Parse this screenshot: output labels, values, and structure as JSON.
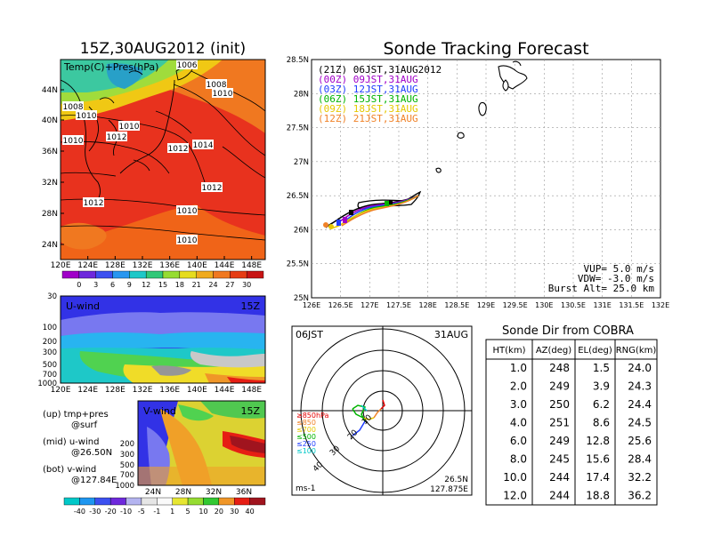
{
  "left": {
    "title": "15Z,30AUG2012 (init)",
    "map_label": "Temp(C)+Pres(hPa)",
    "lat_ticks": [
      "44N",
      "40N",
      "36N",
      "32N",
      "28N",
      "24N"
    ],
    "lon_ticks": [
      "120E",
      "124E",
      "128E",
      "132E",
      "136E",
      "140E",
      "144E",
      "148E"
    ],
    "isobars": [
      "1006",
      "1008",
      "1010",
      "1008",
      "1010",
      "1010",
      "1012",
      "1010",
      "1012",
      "1014",
      "1012",
      "1012",
      "1010",
      "1010"
    ],
    "temp_colorbar": [
      "0",
      "3",
      "6",
      "9",
      "12",
      "15",
      "18",
      "21",
      "24",
      "27",
      "30"
    ],
    "uwind_label": "U-wind",
    "uwind_time": "15Z",
    "uwind_levels": [
      "30",
      "100",
      "200",
      "300",
      "500",
      "700",
      "1000"
    ],
    "uwind_lons": [
      "120E",
      "124E",
      "128E",
      "132E",
      "136E",
      "140E",
      "144E",
      "148E"
    ],
    "vwind_label": "V-wind",
    "vwind_time": "15Z",
    "vwind_levels": [
      "200",
      "300",
      "500",
      "700",
      "1000"
    ],
    "vwind_lats": [
      "24N",
      "28N",
      "32N",
      "36N"
    ],
    "notes": [
      "(up) tmp+pres",
      "@surf",
      "(mid) u-wind",
      "@26.50N",
      "(bot) v-wind",
      "@127.84E"
    ],
    "wind_colorbar": [
      "-40",
      "-30",
      "-20",
      "-10",
      "-5",
      "-1",
      "1",
      "5",
      "10",
      "20",
      "30",
      "40"
    ]
  },
  "forecast": {
    "title": "Sonde Tracking Forecast",
    "lat_ticks": [
      "28.5N",
      "28N",
      "27.5N",
      "27N",
      "26.5N",
      "26N",
      "25.5N",
      "25N"
    ],
    "lon_ticks": [
      "126E",
      "126.5E",
      "127E",
      "127.5E",
      "128E",
      "128.5E",
      "129E",
      "129.5E",
      "130E",
      "130.5E",
      "131E",
      "131.5E",
      "132E"
    ],
    "legend": [
      {
        "text": "(21Z)  06JST,31AUG2012",
        "color": "#000000"
      },
      {
        "text": "(00Z)  09JST,31AUG",
        "color": "#a000c8"
      },
      {
        "text": "(03Z)  12JST,31AUG",
        "color": "#1e3cff"
      },
      {
        "text": "(06Z)  15JST,31AUG",
        "color": "#00b400"
      },
      {
        "text": "(09Z)  18JST,31AUG",
        "color": "#e6c800"
      },
      {
        "text": "(12Z)  21JST,31AUG",
        "color": "#f08228"
      }
    ],
    "params": [
      "VUP=  5.0  m/s",
      "VDW= -3.0  m/s",
      "Burst Alt=  25.0  km"
    ]
  },
  "polar": {
    "left_label": "06JST",
    "right_label": "31AUG",
    "pressure_labels": [
      "≥850hPa",
      "≤850",
      "≤700",
      "≤500",
      "≤250",
      "≤100"
    ],
    "pressure_colors": [
      "#e60000",
      "#f08228",
      "#e6c800",
      "#00b400",
      "#1e3cff",
      "#00c8c8"
    ],
    "speed_labels": [
      "10",
      "20",
      "30",
      "40"
    ],
    "unit": "ms-1",
    "location": [
      "26.5N",
      "127.875E"
    ]
  },
  "chart_data": {
    "type": "table",
    "title": "Sonde Dir from COBRA",
    "columns": [
      "HT(km)",
      "AZ(deg)",
      "EL(deg)",
      "RNG(km)"
    ],
    "rows": [
      [
        "1.0",
        "248",
        "1.5",
        "24.0"
      ],
      [
        "2.0",
        "249",
        "3.9",
        "24.3"
      ],
      [
        "3.0",
        "250",
        "6.2",
        "24.4"
      ],
      [
        "4.0",
        "251",
        "8.6",
        "24.5"
      ],
      [
        "6.0",
        "249",
        "12.8",
        "25.6"
      ],
      [
        "8.0",
        "245",
        "15.6",
        "28.4"
      ],
      [
        "10.0",
        "244",
        "17.4",
        "32.2"
      ],
      [
        "12.0",
        "244",
        "18.8",
        "36.2"
      ]
    ]
  }
}
